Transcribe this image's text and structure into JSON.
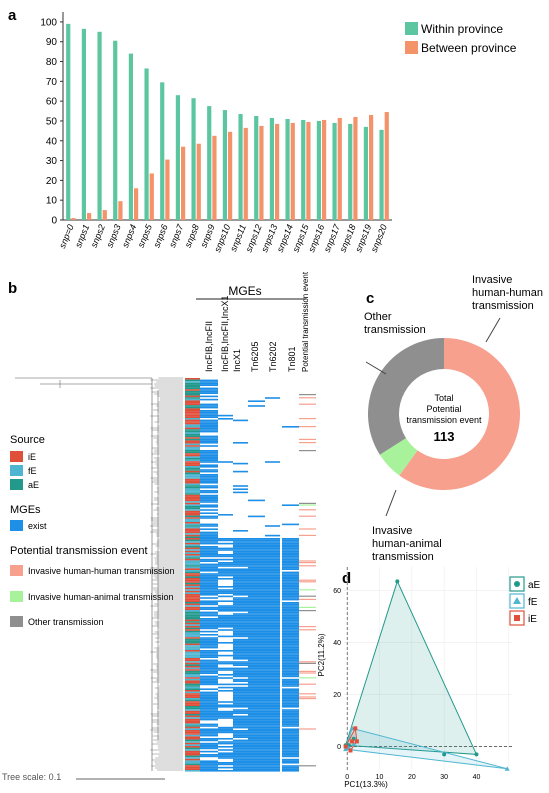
{
  "panels": {
    "a": "a",
    "b": "b",
    "c": "c",
    "d": "d"
  },
  "colors": {
    "within": "#5cc6a0",
    "between": "#f4926a",
    "mge": "#1e8fe6",
    "iE": "#df4f3a",
    "fE": "#4fb6d1",
    "aE": "#23998c",
    "human_human": "#f7a08e",
    "human_animal": "#a8f29c",
    "other": "#8f8f8f",
    "tree": "#555555"
  },
  "chart_data": [
    {
      "type": "bar",
      "panel": "a",
      "categories": [
        "snp=0",
        "snps1",
        "snps2",
        "snps3",
        "snps4",
        "snps5",
        "snps6",
        "snps7",
        "snps8",
        "snps9",
        "snps10",
        "snps11",
        "snps12",
        "snps13",
        "snps14",
        "snps15",
        "snps16",
        "snps17",
        "snps18",
        "snps19",
        "snps20"
      ],
      "series": [
        {
          "name": "Within province",
          "values": [
            99,
            96.5,
            95,
            90.5,
            84,
            76.5,
            69.5,
            63,
            61.5,
            57.5,
            55.5,
            53.5,
            52.5,
            51.5,
            51,
            50.5,
            50,
            49,
            48.5,
            47,
            45.5
          ]
        },
        {
          "name": "Between province",
          "values": [
            1,
            3.5,
            5,
            9.5,
            16,
            23.5,
            30.5,
            37,
            38.5,
            42.5,
            44.5,
            46.5,
            47.5,
            48.5,
            49,
            49.5,
            50.5,
            51.5,
            52,
            53,
            54.5
          ]
        }
      ],
      "yticks": [
        "0",
        "10",
        "20",
        "30",
        "40",
        "50",
        "60",
        "70",
        "80",
        "90",
        "100"
      ],
      "ylim": [
        0,
        105
      ],
      "legend": "top-right"
    },
    {
      "type": "heatmap",
      "panel": "b",
      "group_label": "MGEs",
      "columns": [
        "IncFIB,IncFII",
        "IncFIB,IncFII,IncX1",
        "IncX1",
        "Tn6205",
        "Tn6202",
        "Tn801",
        "Potential transmission event"
      ],
      "legend": {
        "source_title": "Source",
        "source_items": [
          "iE",
          "fE",
          "aE"
        ],
        "mge_title": "MGEs",
        "mge_items": [
          "exist"
        ],
        "event_title": "Potential transmission event",
        "event_items": [
          "Invasive human-human transmission",
          "Invasive human-animal transmission",
          "Other transmission"
        ]
      },
      "tree_scale": "Tree scale: 0.1"
    },
    {
      "type": "pie",
      "panel": "c",
      "labels": [
        "Invasive human-human transmission",
        "Invasive human-animal transmission",
        "Other transmission"
      ],
      "values": [
        60,
        6,
        34
      ],
      "center": {
        "line1": "Total",
        "line2": "Potential",
        "line3": "transmission event",
        "total": "113"
      }
    },
    {
      "type": "scatter",
      "panel": "d",
      "xlabel": "PC1(13.3%)",
      "ylabel": "PC2(11.2%)",
      "xticks": [
        "0",
        "10",
        "20",
        "30",
        "40"
      ],
      "yticks": [
        "0",
        "20",
        "40",
        "60"
      ],
      "xlim": [
        -1,
        51
      ],
      "ylim": [
        -9,
        69
      ],
      "groups": [
        {
          "name": "aE",
          "hull": [
            [
              -0.5,
              0.5
            ],
            [
              15.5,
              63.5
            ],
            [
              40,
              -3
            ]
          ],
          "points": [
            [
              15.5,
              63.5
            ],
            [
              30,
              -3
            ],
            [
              40,
              -3
            ],
            [
              2,
              3
            ],
            [
              0.5,
              0.5
            ],
            [
              -0.5,
              0.5
            ]
          ]
        },
        {
          "name": "fE",
          "hull": [
            [
              -0.5,
              -1
            ],
            [
              1.5,
              7
            ],
            [
              49.5,
              -8.5
            ]
          ],
          "points": [
            [
              49.5,
              -8.5
            ],
            [
              1.5,
              7
            ],
            [
              2,
              1
            ],
            [
              0.5,
              -0.5
            ],
            [
              -0.5,
              -1
            ]
          ]
        },
        {
          "name": "iE",
          "hull": [
            [
              -0.5,
              0
            ],
            [
              2.5,
              7
            ],
            [
              3,
              2
            ],
            [
              1,
              -1.5
            ]
          ],
          "points": [
            [
              2.5,
              7
            ],
            [
              3,
              2
            ],
            [
              1,
              -1.5
            ],
            [
              -0.5,
              0
            ],
            [
              1.5,
              2
            ]
          ]
        }
      ],
      "legend": "top-right"
    }
  ]
}
